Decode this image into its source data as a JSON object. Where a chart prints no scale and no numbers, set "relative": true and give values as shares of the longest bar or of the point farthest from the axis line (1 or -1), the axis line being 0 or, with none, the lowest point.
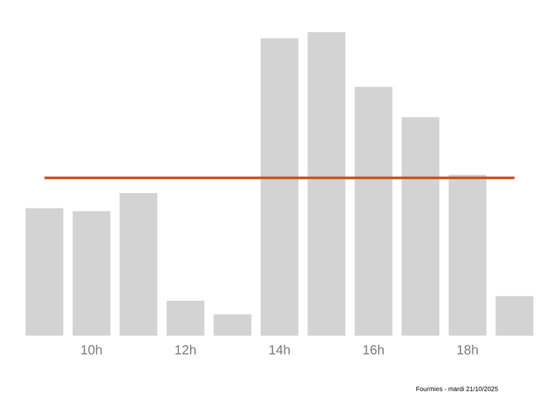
{
  "chart_data": {
    "type": "bar",
    "relative": true,
    "color": "#d3d3d3",
    "categories": [
      null,
      "10h",
      null,
      "12h",
      null,
      "14h",
      null,
      "16h",
      null,
      "18h",
      null
    ],
    "values": [
      0.42,
      0.41,
      0.47,
      0.115,
      0.07,
      0.98,
      1,
      0.82,
      0.72,
      0.53,
      0.13
    ],
    "ref_lines": [
      {
        "axis": "y",
        "value": 0.52,
        "color": "#c9501c"
      }
    ],
    "annotations": [
      "Fourmies - mardi 21/10/2025"
    ]
  }
}
